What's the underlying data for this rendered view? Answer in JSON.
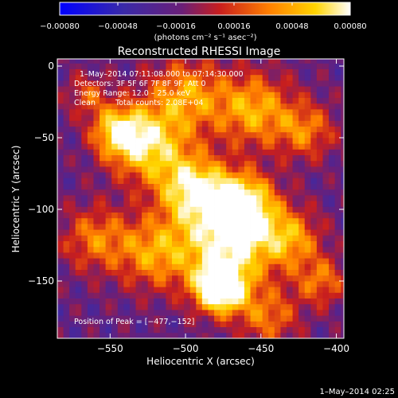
{
  "chart_data": {
    "type": "heatmap",
    "title": "Reconstructed RHESSI Image",
    "xlabel": "Heliocentric X (arcsec)",
    "ylabel": "Heliocentric Y (arcsec)",
    "xlim": [
      -585,
      -395
    ],
    "ylim": [
      -190,
      5
    ],
    "xticks": [
      -550,
      -500,
      -450,
      -400
    ],
    "xtick_labels": [
      "−550",
      "−500",
      "−450",
      "−400"
    ],
    "yticks": [
      0,
      -50,
      -100,
      -150
    ],
    "ytick_labels": [
      "0",
      "−50",
      "−100",
      "−150"
    ],
    "colorbar": {
      "range": [
        -0.0008,
        0.0008
      ],
      "ticks": [
        -0.0008,
        -0.00048,
        -0.00016,
        0.00016,
        0.00048,
        0.0008
      ],
      "tick_labels": [
        "−0.00080",
        "−0.00048",
        "−0.00016",
        "0.00016",
        "0.00048",
        "0.00080"
      ],
      "unit_label": "(photons cm⁻² s⁻¹ asec⁻²)"
    },
    "colormap": [
      "#0000ff",
      "#3a2aa8",
      "#6a1f78",
      "#c81e1e",
      "#ff7f00",
      "#ffd400",
      "#ffffff"
    ],
    "annotations": {
      "time_range": "1–May–2014 07:11:08.000 to 07:14:30.000",
      "detectors": "Detectors: 3F 5F 6F 7F 8F 9F, Att 0",
      "energy_range": "Energy Range: 12.0 – 25.0 keV",
      "method": "Clean",
      "total_counts": "Total counts: 2.08E+04",
      "peak_position": "Position of Peak = [−477,−152]"
    },
    "peak": {
      "x": -477,
      "y": -152
    }
  },
  "footer": {
    "timestamp": "1–May–2014 02:25"
  }
}
